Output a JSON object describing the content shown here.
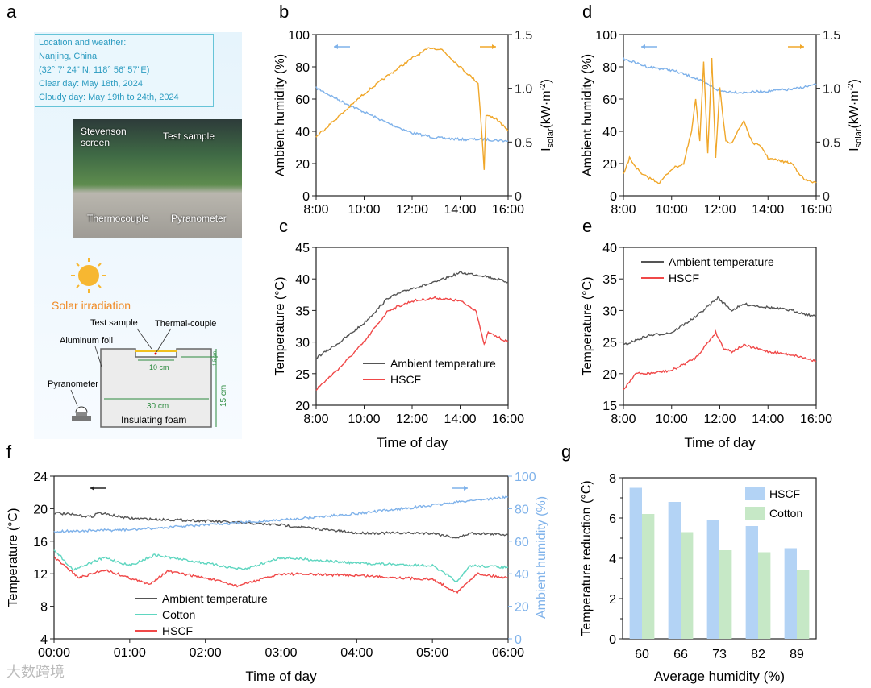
{
  "panel_labels": {
    "a": "a",
    "b": "b",
    "c": "c",
    "d": "d",
    "e": "e",
    "f": "f",
    "g": "g"
  },
  "panel_a": {
    "info": [
      "Location and weather:",
      "Nanjing, China",
      "(32° 7' 24\" N, 118° 56' 57\"E)",
      "Clear day: May 18th, 2024",
      "Cloudy day: May 19th to 24th, 2024"
    ],
    "photo_labels": {
      "stevenson": "Stevenson screen",
      "test_sample": "Test sample",
      "thermocouple": "Thermocouple",
      "pyranometer": "Pyranometer"
    },
    "diagram": {
      "solar": "Solar irradiation",
      "test_sample": "Test sample",
      "thermal_couple": "Thermal-couple",
      "foil": "Aluminum foil",
      "pyranometer": "Pyranometer",
      "width_small": "10 cm",
      "width_big": "30 cm",
      "foam": "Insulating foam",
      "depth": "1.5 cm",
      "height": "15 cm"
    }
  },
  "watermark": "大数跨境",
  "colors": {
    "humidity": "#7fb2ea",
    "solar": "#f0a72a",
    "ambient": "#555555",
    "hscf": "#f04848",
    "cotton": "#5fd6c0",
    "bar_hscf": "#b3d3f5",
    "bar_cotton": "#c6e8c6"
  },
  "chart_data": [
    {
      "id": "b",
      "type": "line",
      "xlabel": "",
      "xticks": [
        "8:00",
        "10:00",
        "12:00",
        "14:00",
        "16:00"
      ],
      "xlim": [
        8,
        16
      ],
      "ylabel": "Ambient humidity (%)",
      "ylim": [
        0,
        100
      ],
      "yticks": [
        0,
        20,
        40,
        60,
        80,
        100
      ],
      "y2label": {
        "main": "I",
        "sub": "solar",
        "rest": "(kW·m",
        "sup": "-2",
        "end": ")"
      },
      "y2lim": [
        0,
        1.5
      ],
      "y2ticks": [
        "0",
        "0.5",
        "1.0",
        "1.5"
      ],
      "series": [
        {
          "name": "Ambient humidity",
          "axis": "left",
          "color_key": "humidity",
          "x": [
            8,
            9,
            10,
            11,
            12,
            13,
            14,
            15,
            16
          ],
          "y": [
            67,
            59,
            52,
            45,
            39,
            36,
            35,
            35,
            34
          ]
        },
        {
          "name": "Isolar",
          "axis": "right",
          "color_key": "solar",
          "x": [
            8,
            9,
            10,
            11,
            12,
            12.75,
            13.25,
            14,
            14.75,
            14.9,
            15,
            15.08,
            15.5,
            16
          ],
          "y": [
            0.55,
            0.75,
            0.95,
            1.12,
            1.28,
            1.38,
            1.36,
            1.2,
            1.05,
            0.6,
            0.25,
            0.75,
            0.72,
            0.6
          ]
        }
      ]
    },
    {
      "id": "c",
      "type": "line",
      "xlabel": "Time of day",
      "xticks": [
        "8:00",
        "10:00",
        "12:00",
        "14:00",
        "16:00"
      ],
      "xlim": [
        8,
        16
      ],
      "ylabel": "Temperature (°C)",
      "ylim": [
        20,
        45
      ],
      "yticks": [
        20,
        25,
        30,
        35,
        40,
        45
      ],
      "legend": "bottom-right",
      "series": [
        {
          "name": "Ambient temperature",
          "axis": "left",
          "color_key": "ambient",
          "x": [
            8,
            9,
            10,
            11,
            12,
            13,
            14,
            15,
            16
          ],
          "y": [
            27.5,
            30,
            33,
            37,
            38.5,
            39.5,
            41,
            40.5,
            39.5
          ]
        },
        {
          "name": "HSCF",
          "axis": "left",
          "color_key": "hscf",
          "x": [
            8,
            9,
            10,
            11,
            12,
            13,
            14,
            14.67,
            15,
            15.17,
            16
          ],
          "y": [
            22.5,
            26,
            30,
            35,
            36.5,
            37,
            36.5,
            35,
            29.5,
            31.5,
            30
          ]
        }
      ]
    },
    {
      "id": "d",
      "type": "line",
      "xlabel": "",
      "xticks": [
        "8:00",
        "10:00",
        "12:00",
        "14:00",
        "16:00"
      ],
      "xlim": [
        8,
        16
      ],
      "ylabel": "Ambient humidity (%)",
      "ylim": [
        0,
        100
      ],
      "yticks": [
        0,
        20,
        40,
        60,
        80,
        100
      ],
      "y2label": {
        "main": "I",
        "sub": "solar",
        "rest": "(kW·m",
        "sup": "-2",
        "end": ")"
      },
      "y2lim": [
        0,
        1.5
      ],
      "y2ticks": [
        "0",
        "0.5",
        "1.0",
        "1.5"
      ],
      "series": [
        {
          "name": "Ambient humidity",
          "axis": "left",
          "color_key": "humidity",
          "x": [
            8,
            9,
            10,
            11,
            12,
            13,
            14,
            15,
            16
          ],
          "y": [
            85,
            80,
            78,
            73,
            65,
            64,
            65,
            66,
            69
          ]
        },
        {
          "name": "Isolar",
          "axis": "right",
          "color_key": "solar",
          "x": [
            8,
            8.25,
            8.75,
            9.5,
            10,
            10.5,
            10.83,
            11,
            11.17,
            11.33,
            11.5,
            11.67,
            11.83,
            12,
            12.25,
            12.5,
            13,
            13.33,
            13.75,
            14,
            15,
            15.5,
            16
          ],
          "y": [
            0.2,
            0.35,
            0.2,
            0.12,
            0.25,
            0.3,
            0.6,
            0.9,
            0.5,
            1.25,
            0.4,
            1.28,
            0.35,
            1.0,
            0.5,
            0.5,
            0.7,
            0.5,
            0.45,
            0.35,
            0.3,
            0.15,
            0.12
          ]
        }
      ]
    },
    {
      "id": "e",
      "type": "line",
      "xlabel": "Time of day",
      "xticks": [
        "8:00",
        "10:00",
        "12:00",
        "14:00",
        "16:00"
      ],
      "xlim": [
        8,
        16
      ],
      "ylabel": "Temperature (°C)",
      "ylim": [
        15,
        40
      ],
      "yticks": [
        15,
        20,
        25,
        30,
        35,
        40
      ],
      "legend": "top-left",
      "series": [
        {
          "name": "Ambient temperature",
          "axis": "left",
          "color_key": "ambient",
          "x": [
            8,
            9,
            10,
            11,
            11.92,
            12.5,
            13,
            14,
            15,
            16
          ],
          "y": [
            24.5,
            26,
            26.5,
            29,
            32,
            30,
            31,
            30.5,
            30,
            29
          ]
        },
        {
          "name": "HSCF",
          "axis": "left",
          "color_key": "hscf",
          "x": [
            8,
            8.5,
            9,
            10,
            11,
            11.83,
            12.17,
            12.5,
            13,
            14,
            15,
            16
          ],
          "y": [
            17.5,
            20,
            20,
            20.5,
            22.5,
            26.5,
            24,
            23.5,
            24.5,
            23.5,
            23,
            22
          ]
        }
      ]
    },
    {
      "id": "f",
      "type": "line",
      "xlabel": "Time of day",
      "xticks": [
        "00:00",
        "01:00",
        "02:00",
        "03:00",
        "04:00",
        "05:00",
        "06:00"
      ],
      "xlim": [
        0,
        6
      ],
      "ylabel": "Temperature (°C)",
      "ylim": [
        4,
        24
      ],
      "yticks": [
        4,
        8,
        12,
        16,
        20,
        24
      ],
      "y2label_text": "Ambient humidity (%)",
      "y2lim": [
        0,
        100
      ],
      "y2ticks": [
        "0",
        "20",
        "40",
        "60",
        "80",
        "100"
      ],
      "legend": "bottom-left",
      "series": [
        {
          "name": "Ambient temperature",
          "axis": "left",
          "color_key": "ambient",
          "x": [
            0,
            0.5,
            0.58,
            1,
            2,
            3,
            4,
            5,
            5.33,
            5.5,
            6
          ],
          "y": [
            19.5,
            19,
            19.5,
            18.8,
            18.5,
            18,
            17,
            17,
            16.4,
            17,
            16.8
          ]
        },
        {
          "name": "Cotton",
          "axis": "left",
          "color_key": "cotton",
          "x": [
            0,
            0.25,
            0.67,
            1,
            1.33,
            2,
            2.5,
            3,
            4,
            5,
            5.33,
            5.5,
            6
          ],
          "y": [
            15,
            12.5,
            14,
            13,
            14.3,
            13.3,
            12.5,
            14,
            13.3,
            13,
            11,
            13,
            12.8
          ]
        },
        {
          "name": "HSCF",
          "axis": "left",
          "color_key": "hscf",
          "x": [
            0,
            0.33,
            0.67,
            1.25,
            1.5,
            2,
            2.42,
            3,
            4,
            5,
            5.33,
            5.58,
            6
          ],
          "y": [
            14,
            11.5,
            12.5,
            10.7,
            12.3,
            11.5,
            10.5,
            12,
            11.8,
            11.3,
            9.7,
            12,
            11.5
          ]
        },
        {
          "name": "Ambient humidity",
          "axis": "right",
          "color_key": "humidity",
          "legend": false,
          "x": [
            0,
            1,
            2,
            3,
            4,
            5,
            5.5,
            6
          ],
          "y": [
            66,
            67,
            70,
            73,
            77,
            82,
            85,
            87
          ]
        }
      ]
    },
    {
      "id": "g",
      "type": "bar",
      "title": "",
      "xlabel": "Average humidity (%)",
      "ylabel": "Temperature reduction (°C)",
      "categories": [
        "60",
        "66",
        "73",
        "82",
        "89"
      ],
      "ylim": [
        0,
        8
      ],
      "yticks": [
        0,
        2,
        4,
        6,
        8
      ],
      "legend": "top-right",
      "series": [
        {
          "name": "HSCF",
          "color_key": "bar_hscf",
          "values": [
            7.5,
            6.8,
            5.9,
            5.6,
            4.5
          ]
        },
        {
          "name": "Cotton",
          "color_key": "bar_cotton",
          "values": [
            6.2,
            5.3,
            4.4,
            4.3,
            3.4
          ]
        }
      ]
    }
  ]
}
